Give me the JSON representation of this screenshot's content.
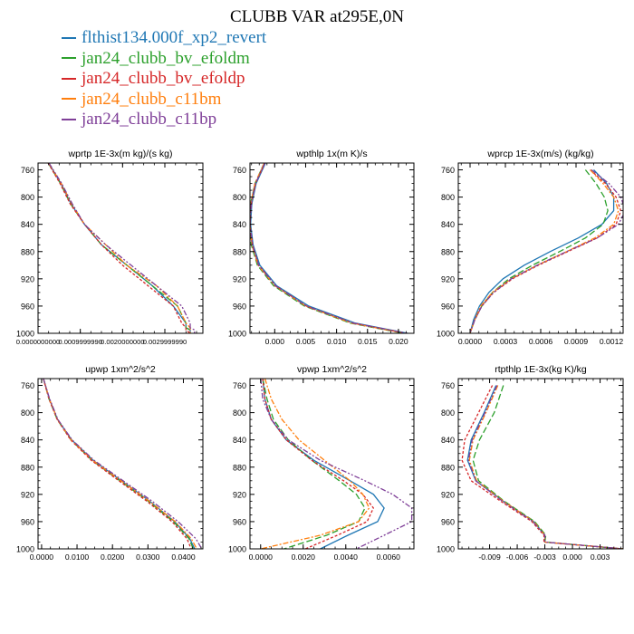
{
  "title": "CLUBB VAR at295E,0N",
  "legend": [
    {
      "label": "flthist134.000f_xp2_revert",
      "color": "#1f77b4"
    },
    {
      "label": "jan24_clubb_bv_efoldm",
      "color": "#2ca02c"
    },
    {
      "label": "jan24_clubb_bv_efoldp",
      "color": "#d62728"
    },
    {
      "label": "jan24_clubb_c11bm",
      "color": "#ff7f0e"
    },
    {
      "label": "jan24_clubb_c11bp",
      "color": "#7f3f98"
    }
  ],
  "chart_data": [
    {
      "type": "line",
      "title": "wprtp  1E-3x(m kg)/(s kg)",
      "xlim": [
        0,
        3.9e-12
      ],
      "ylim": [
        1000,
        750
      ],
      "xticks": [
        0,
        1e-12,
        2e-12,
        3e-12
      ],
      "xticklabels": [
        "0.0000000000",
        "0.0009999990",
        "0.0020000000",
        "0.0029999990"
      ],
      "yticks": [
        760,
        800,
        840,
        880,
        920,
        960,
        1000
      ],
      "y": [
        750,
        780,
        810,
        840,
        870,
        900,
        930,
        960,
        985,
        992,
        995,
        1000
      ],
      "series": [
        {
          "x": [
            2.5e-13,
            5.4e-13,
            7.8e-13,
            1.1e-12,
            1.5e-12,
            2.1e-12,
            2.7e-12,
            3.2e-12,
            3.5e-12,
            3.5e-12,
            3.6e-12,
            3.6e-12
          ]
        },
        {
          "x": [
            2.4e-13,
            5.3e-13,
            7.7e-13,
            1.1e-12,
            1.5e-12,
            2.1e-12,
            2.7e-12,
            3.3e-12,
            3.5e-12,
            3.5e-12,
            3.6e-12,
            3.6e-12
          ]
        },
        {
          "x": [
            2.4e-13,
            5.2e-13,
            7.6e-13,
            1.1e-12,
            1.5e-12,
            2e-12,
            2.6e-12,
            3.2e-12,
            3.4e-12,
            3.5e-12,
            3.5e-12,
            3.6e-12
          ]
        },
        {
          "x": [
            2.5e-13,
            5.5e-13,
            8e-13,
            1.1e-12,
            1.6e-12,
            2.1e-12,
            2.8e-12,
            3.3e-12,
            3.5e-12,
            3.6e-12,
            3.6e-12,
            3.6e-12
          ]
        },
        {
          "x": [
            2.6e-13,
            5.6e-13,
            8.1e-13,
            1.1e-12,
            1.6e-12,
            2.2e-12,
            2.8e-12,
            3.4e-12,
            3.6e-12,
            3.6e-12,
            3.7e-12,
            3.7e-12
          ]
        }
      ]
    },
    {
      "type": "line",
      "title": "wpthlp  1x(m K)/s",
      "xlim": [
        -0.004,
        0.0225
      ],
      "ylim": [
        1000,
        750
      ],
      "xticks": [
        0,
        0.005,
        0.01,
        0.015,
        0.02
      ],
      "xticklabels": [
        "0.000",
        "0.005",
        "0.010",
        "0.015",
        "0.020"
      ],
      "yticks": [
        760,
        800,
        840,
        880,
        920,
        960,
        1000
      ],
      "y": [
        750,
        780,
        810,
        840,
        870,
        900,
        930,
        960,
        985,
        1000
      ],
      "series": [
        {
          "x": [
            -0.0015,
            -0.003,
            -0.0037,
            -0.0039,
            -0.0035,
            -0.0024,
            0.0003,
            0.0055,
            0.013,
            0.0215
          ]
        },
        {
          "x": [
            -0.0017,
            -0.0032,
            -0.0039,
            -0.0041,
            -0.0038,
            -0.0028,
            -0.0002,
            0.0048,
            0.0122,
            0.0208
          ]
        },
        {
          "x": [
            -0.0016,
            -0.0031,
            -0.0038,
            -0.004,
            -0.0036,
            -0.0026,
            0.0001,
            0.0051,
            0.0126,
            0.0212
          ]
        },
        {
          "x": [
            -0.0017,
            -0.0032,
            -0.0039,
            -0.004,
            -0.0037,
            -0.0027,
            0,
            0.005,
            0.0124,
            0.021
          ]
        },
        {
          "x": [
            -0.0016,
            -0.0031,
            -0.0038,
            -0.004,
            -0.0036,
            -0.0026,
            0.0001,
            0.0051,
            0.0127,
            0.0214
          ]
        }
      ]
    },
    {
      "type": "line",
      "title": "wprcp  1E-3x(m/s) (kg/kg)",
      "xlim": [
        -0.0001,
        0.0013
      ],
      "ylim": [
        1000,
        750
      ],
      "xticks": [
        0,
        0.0003,
        0.0006,
        0.0009,
        0.0012
      ],
      "xticklabels": [
        "0.0000",
        "0.0003",
        "0.0006",
        "0.0009",
        "0.0012"
      ],
      "yticks": [
        760,
        800,
        840,
        880,
        920,
        960,
        1000
      ],
      "y": [
        760,
        780,
        800,
        820,
        840,
        860,
        880,
        900,
        920,
        940,
        960,
        980,
        1000
      ],
      "series": [
        {
          "x": [
            0.00105,
            0.00116,
            0.00122,
            0.00122,
            0.00112,
            0.00092,
            0.00068,
            0.00046,
            0.00028,
            0.00016,
            8e-05,
            3e-05,
            0
          ]
        },
        {
          "x": [
            0.00098,
            0.00107,
            0.00114,
            0.00117,
            0.00113,
            0.00098,
            0.00076,
            0.00053,
            0.00033,
            0.00019,
            0.0001,
            4e-05,
            0
          ]
        },
        {
          "x": [
            0.00102,
            0.00115,
            0.00124,
            0.00128,
            0.00124,
            0.00108,
            0.00083,
            0.00058,
            0.00036,
            0.0002,
            0.0001,
            4e-05,
            0
          ]
        },
        {
          "x": [
            0.00102,
            0.00113,
            0.00122,
            0.00126,
            0.00122,
            0.00106,
            0.00082,
            0.00057,
            0.00035,
            0.00019,
            9e-05,
            4e-05,
            0
          ]
        },
        {
          "x": [
            0.00103,
            0.00118,
            0.00128,
            0.00132,
            0.00126,
            0.00108,
            0.00082,
            0.00057,
            0.00035,
            0.0002,
            0.0001,
            4e-05,
            0
          ]
        }
      ]
    },
    {
      "type": "line",
      "title": "upwp  1xm^2/s^2",
      "xlim": [
        -0.001,
        0.0455
      ],
      "ylim": [
        1000,
        750
      ],
      "xticks": [
        0,
        0.01,
        0.02,
        0.03,
        0.04
      ],
      "xticklabels": [
        "0.0000",
        "0.0100",
        "0.0200",
        "0.0300",
        "0.0400"
      ],
      "yticks": [
        760,
        800,
        840,
        880,
        920,
        960,
        1000
      ],
      "y": [
        750,
        780,
        810,
        840,
        870,
        900,
        930,
        960,
        985,
        1000
      ],
      "series": [
        {
          "x": [
            0.0005,
            0.0022,
            0.0045,
            0.0085,
            0.0145,
            0.0225,
            0.0305,
            0.0375,
            0.0418,
            0.0432
          ]
        },
        {
          "x": [
            0.0005,
            0.0021,
            0.0044,
            0.0083,
            0.0142,
            0.0221,
            0.0301,
            0.0372,
            0.0416,
            0.0428
          ]
        },
        {
          "x": [
            0.0005,
            0.0021,
            0.0044,
            0.0082,
            0.014,
            0.0218,
            0.0297,
            0.0368,
            0.041,
            0.0422
          ]
        },
        {
          "x": [
            0.0005,
            0.0022,
            0.0045,
            0.0084,
            0.0144,
            0.0224,
            0.0304,
            0.0377,
            0.0422,
            0.0438
          ]
        },
        {
          "x": [
            0.0005,
            0.0023,
            0.0046,
            0.0086,
            0.0148,
            0.023,
            0.0312,
            0.0385,
            0.0435,
            0.0452
          ]
        }
      ]
    },
    {
      "type": "line",
      "title": "vpwp  1xm^2/s^2",
      "xlim": [
        -0.0005,
        0.0072
      ],
      "ylim": [
        1000,
        750
      ],
      "xticks": [
        0,
        0.002,
        0.004,
        0.006
      ],
      "xticklabels": [
        "0.0000",
        "0.0020",
        "0.0040",
        "0.0060"
      ],
      "yticks": [
        760,
        800,
        840,
        880,
        920,
        960,
        1000
      ],
      "y": [
        750,
        780,
        810,
        840,
        870,
        900,
        920,
        940,
        960,
        980,
        1000
      ],
      "series": [
        {
          "x": [
            0.0001,
            0.0002,
            0.0005,
            0.0012,
            0.0025,
            0.0042,
            0.0053,
            0.0058,
            0.0055,
            0.0041,
            0.0028
          ]
        },
        {
          "x": [
            0.0001,
            0.0003,
            0.0006,
            0.0013,
            0.0024,
            0.0037,
            0.0045,
            0.0049,
            0.0046,
            0.0031,
            0.0011
          ]
        },
        {
          "x": [
            0.0001,
            0.0002,
            0.0005,
            0.0012,
            0.0024,
            0.0039,
            0.0048,
            0.0053,
            0.005,
            0.0036,
            0.0021
          ]
        },
        {
          "x": [
            0.0002,
            0.0005,
            0.001,
            0.0018,
            0.003,
            0.0042,
            0.0048,
            0.0051,
            0.0046,
            0.0028,
            0
          ]
        },
        {
          "x": [
            0,
            0.0001,
            0.0005,
            0.0013,
            0.0028,
            0.0049,
            0.0062,
            0.0071,
            0.0071,
            0.0058,
            0.0045
          ]
        }
      ]
    },
    {
      "type": "line",
      "title": "rtpthlp  1E-3x(kg K)/kg",
      "xlim": [
        -0.0124,
        0.0055
      ],
      "ylim": [
        1000,
        750
      ],
      "xticks": [
        -0.009,
        -0.006,
        -0.003,
        0,
        0.003
      ],
      "xticklabels": [
        "-0.009",
        "-0.006",
        "-0.003",
        "0.000",
        "0.003"
      ],
      "yticks": [
        760,
        800,
        840,
        880,
        920,
        960,
        1000
      ],
      "y": [
        760,
        800,
        840,
        870,
        900,
        930,
        960,
        980,
        990,
        1000
      ],
      "series": [
        {
          "x": [
            -0.0083,
            -0.0096,
            -0.011,
            -0.0114,
            -0.0105,
            -0.0075,
            -0.0042,
            -0.003,
            -0.003,
            0.0055
          ]
        },
        {
          "x": [
            -0.0075,
            -0.0085,
            -0.0101,
            -0.0108,
            -0.0102,
            -0.0074,
            -0.0041,
            -0.0029,
            -0.003,
            0.0055
          ]
        },
        {
          "x": [
            -0.0087,
            -0.0102,
            -0.0117,
            -0.012,
            -0.011,
            -0.0078,
            -0.0044,
            -0.0031,
            -0.0031,
            0.0055
          ]
        },
        {
          "x": [
            -0.0081,
            -0.0094,
            -0.0108,
            -0.0112,
            -0.0104,
            -0.0075,
            -0.0042,
            -0.003,
            -0.003,
            0.0055
          ]
        },
        {
          "x": [
            -0.0082,
            -0.0095,
            -0.0109,
            -0.0113,
            -0.0105,
            -0.0076,
            -0.0043,
            -0.003,
            -0.003,
            0.0055
          ]
        }
      ]
    }
  ]
}
